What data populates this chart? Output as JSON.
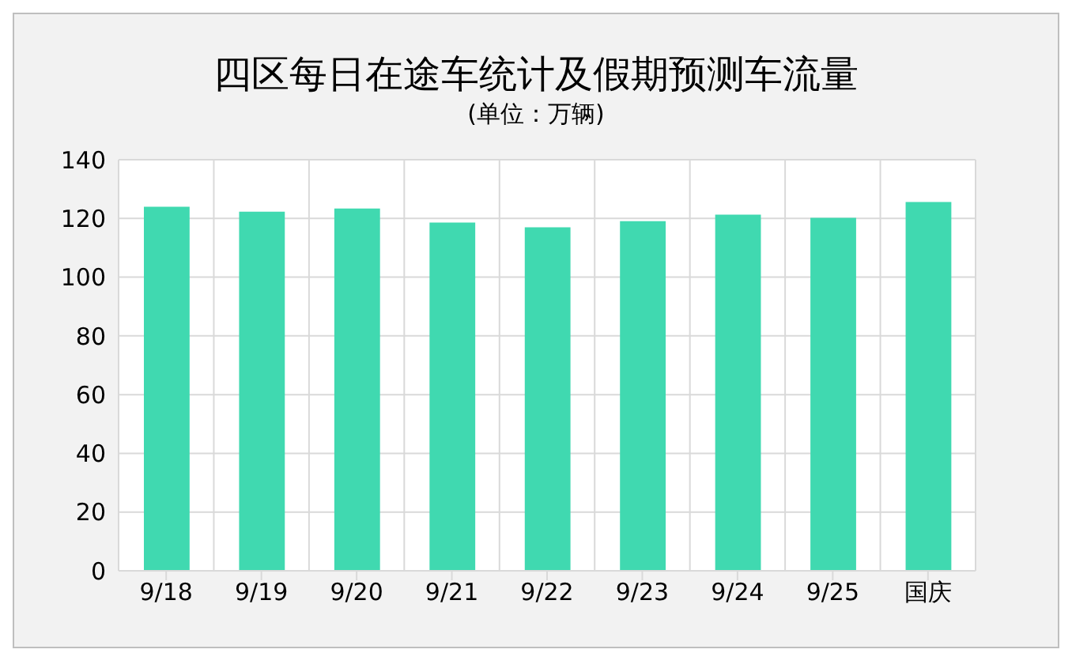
{
  "chart_data": {
    "type": "bar",
    "title": "四区每日在途车统计及假期预测车流量",
    "subtitle": "(单位：万辆)",
    "categories": [
      "9/18",
      "9/19",
      "9/20",
      "9/21",
      "9/22",
      "9/23",
      "9/24",
      "9/25",
      "国庆"
    ],
    "values": [
      124,
      122.3,
      123.4,
      118.6,
      117,
      119.1,
      121.3,
      120.2,
      125.6
    ],
    "color": "#40d9b0",
    "ylim": [
      0,
      140
    ],
    "yticks": [
      0,
      20,
      40,
      60,
      80,
      100,
      120,
      140
    ],
    "grid": true
  }
}
